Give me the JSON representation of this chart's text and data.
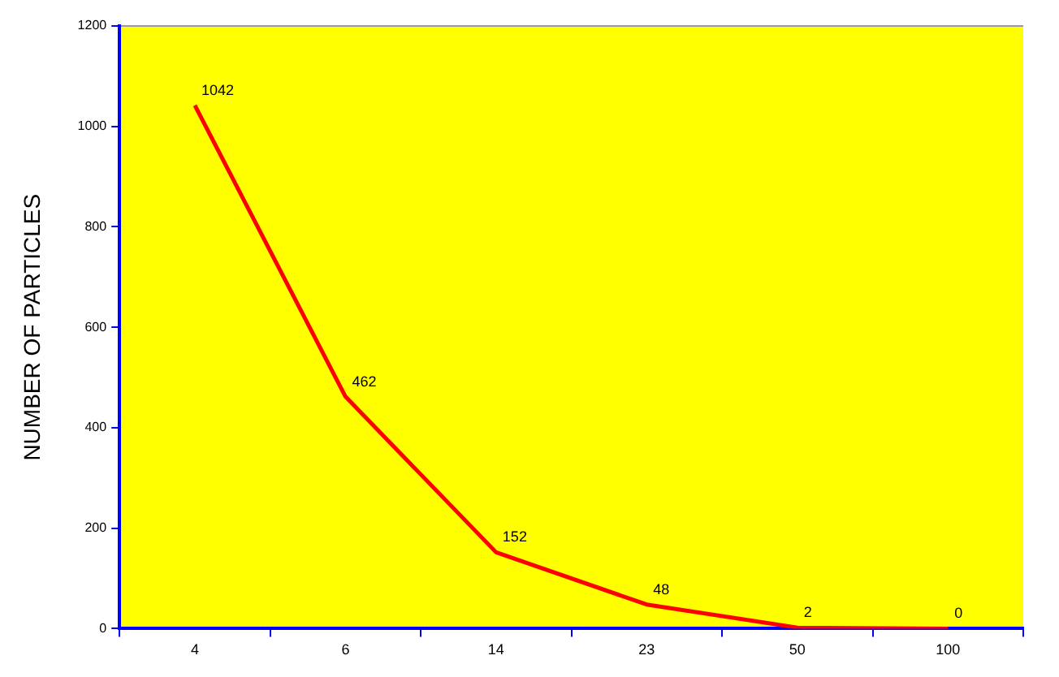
{
  "chart_data": {
    "type": "line",
    "ylabel": "NUMBER OF PARTICLES",
    "categories": [
      "4",
      "6",
      "14",
      "23",
      "50",
      "100"
    ],
    "series": [
      {
        "color": "#ff0000",
        "values": [
          1042,
          462,
          152,
          48,
          2,
          0
        ]
      }
    ],
    "ylim": [
      0,
      1200
    ],
    "yticks": [
      0,
      200,
      400,
      600,
      800,
      1000,
      1200
    ],
    "grid": false,
    "legend": false,
    "marker": "none",
    "line_style": "solid",
    "data_labels": true
  }
}
